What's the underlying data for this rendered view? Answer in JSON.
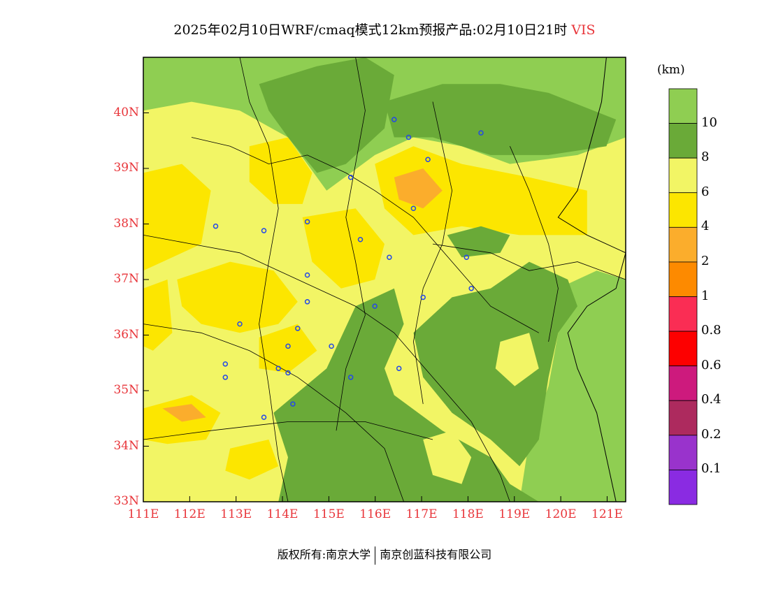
{
  "title": {
    "text": "2025年02月10日WRF/cmaq模式12km预报产品:02月10日21时",
    "variable": "VIS"
  },
  "map": {
    "lat_labels": [
      "40N",
      "39N",
      "38N",
      "37N",
      "36N",
      "35N",
      "34N",
      "33N"
    ],
    "lon_labels": [
      "111E",
      "112E",
      "113E",
      "114E",
      "115E",
      "116E",
      "117E",
      "118E",
      "119E",
      "120E",
      "121E"
    ],
    "lat_range": [
      33,
      41
    ],
    "lon_range": [
      111,
      121.4
    ],
    "colors": {
      "lt8": "#f2f565",
      "lt6": "#fce600",
      "lt4": "#fbad2c",
      "gt10": "#8fce52",
      "8to10": "#6aaa38"
    }
  },
  "colorbar": {
    "unit": "(km)",
    "labels": [
      "10",
      "8",
      "6",
      "4",
      "2",
      "1",
      "0.8",
      "0.6",
      "0.4",
      "0.2",
      "0.1"
    ],
    "colors": [
      "#8fce52",
      "#6aaa38",
      "#f2f565",
      "#fce600",
      "#fbad2c",
      "#fd8a00",
      "#fa2d54",
      "#fd0000",
      "#cd1a7d",
      "#ad2a5e",
      "#9933cc",
      "#8a2be2"
    ]
  },
  "footer": {
    "left": "版权所有:南京大学",
    "right": "南京创蓝科技有限公司"
  }
}
